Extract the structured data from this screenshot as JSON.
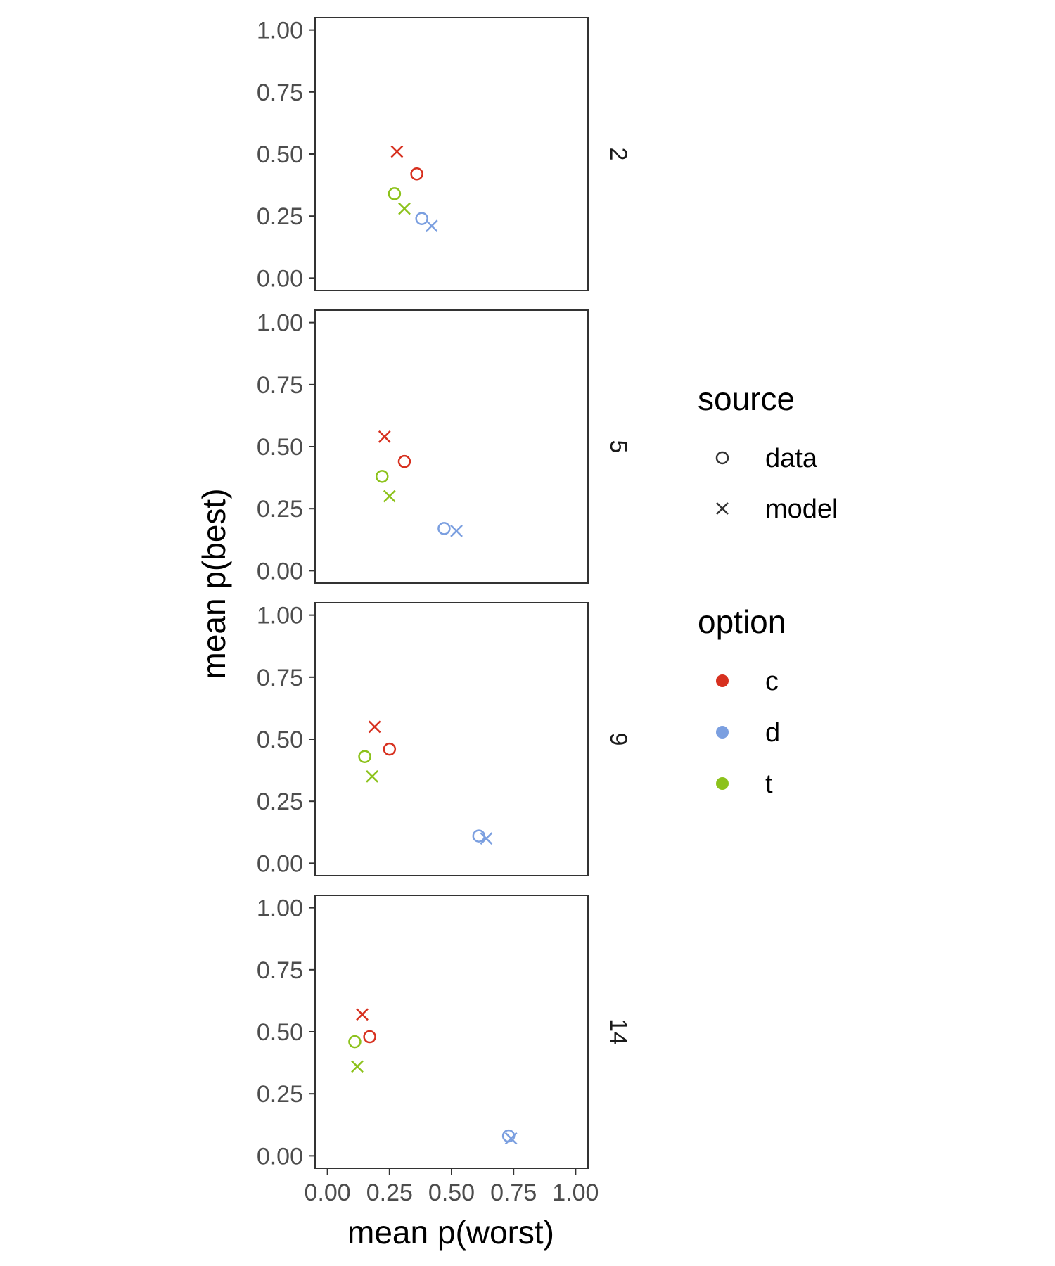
{
  "chart_data": {
    "type": "scatter",
    "xlabel": "mean p(worst)",
    "ylabel": "mean p(best)",
    "xlim": [
      -0.05,
      1.05
    ],
    "ylim": [
      -0.05,
      1.05
    ],
    "x_ticks": [
      "0.00",
      "0.25",
      "0.50",
      "0.75",
      "1.00"
    ],
    "y_ticks": [
      "0.00",
      "0.25",
      "0.50",
      "0.75",
      "1.00"
    ],
    "grid": false,
    "facet_labels": [
      "2",
      "5",
      "9",
      "14"
    ],
    "colors": {
      "c": "#d7301f",
      "d": "#7b9fe0",
      "t": "#8cc21b"
    },
    "legend": {
      "placement": "right",
      "source": {
        "title": "source",
        "entries": [
          {
            "key": "data",
            "label": "data",
            "shape": "circle"
          },
          {
            "key": "model",
            "label": "model",
            "shape": "cross"
          }
        ]
      },
      "option": {
        "title": "option",
        "entries": [
          {
            "key": "c",
            "label": "c"
          },
          {
            "key": "d",
            "label": "d"
          },
          {
            "key": "t",
            "label": "t"
          }
        ]
      }
    },
    "panels": [
      {
        "label": "2",
        "points": [
          {
            "option": "c",
            "source": "model",
            "x": 0.28,
            "y": 0.51
          },
          {
            "option": "c",
            "source": "data",
            "x": 0.36,
            "y": 0.42
          },
          {
            "option": "t",
            "source": "data",
            "x": 0.27,
            "y": 0.34
          },
          {
            "option": "t",
            "source": "model",
            "x": 0.31,
            "y": 0.28
          },
          {
            "option": "d",
            "source": "data",
            "x": 0.38,
            "y": 0.24
          },
          {
            "option": "d",
            "source": "model",
            "x": 0.42,
            "y": 0.21
          }
        ]
      },
      {
        "label": "5",
        "points": [
          {
            "option": "c",
            "source": "model",
            "x": 0.23,
            "y": 0.54
          },
          {
            "option": "c",
            "source": "data",
            "x": 0.31,
            "y": 0.44
          },
          {
            "option": "t",
            "source": "data",
            "x": 0.22,
            "y": 0.38
          },
          {
            "option": "t",
            "source": "model",
            "x": 0.25,
            "y": 0.3
          },
          {
            "option": "d",
            "source": "data",
            "x": 0.47,
            "y": 0.17
          },
          {
            "option": "d",
            "source": "model",
            "x": 0.52,
            "y": 0.16
          }
        ]
      },
      {
        "label": "9",
        "points": [
          {
            "option": "c",
            "source": "model",
            "x": 0.19,
            "y": 0.55
          },
          {
            "option": "c",
            "source": "data",
            "x": 0.25,
            "y": 0.46
          },
          {
            "option": "t",
            "source": "data",
            "x": 0.15,
            "y": 0.43
          },
          {
            "option": "t",
            "source": "model",
            "x": 0.18,
            "y": 0.35
          },
          {
            "option": "d",
            "source": "data",
            "x": 0.61,
            "y": 0.11
          },
          {
            "option": "d",
            "source": "model",
            "x": 0.64,
            "y": 0.1
          }
        ]
      },
      {
        "label": "14",
        "points": [
          {
            "option": "c",
            "source": "model",
            "x": 0.14,
            "y": 0.57
          },
          {
            "option": "c",
            "source": "data",
            "x": 0.17,
            "y": 0.48
          },
          {
            "option": "t",
            "source": "data",
            "x": 0.11,
            "y": 0.46
          },
          {
            "option": "t",
            "source": "model",
            "x": 0.12,
            "y": 0.36
          },
          {
            "option": "d",
            "source": "data",
            "x": 0.73,
            "y": 0.08
          },
          {
            "option": "d",
            "source": "model",
            "x": 0.74,
            "y": 0.07
          }
        ]
      }
    ]
  }
}
